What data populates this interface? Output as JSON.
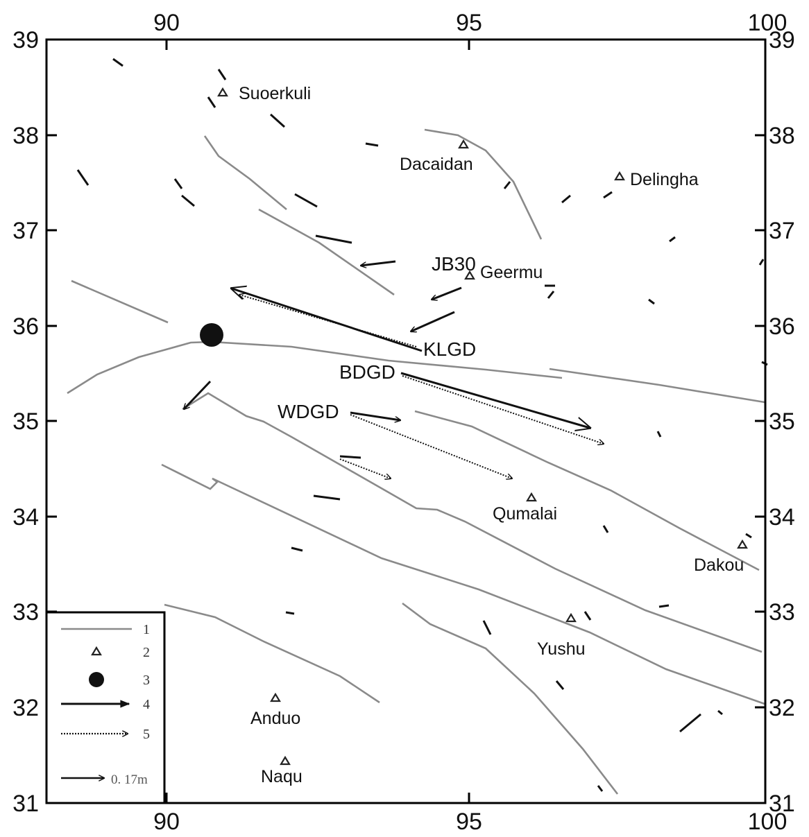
{
  "axes": {
    "x_ticks": [
      "90",
      "95",
      "100"
    ],
    "y_ticks": [
      "39",
      "38",
      "37",
      "36",
      "35",
      "34",
      "33",
      "32",
      "31"
    ]
  },
  "places": [
    {
      "id": "suoerkuli",
      "name": "Suoerkuli"
    },
    {
      "id": "dacaidan",
      "name": "Dacaidan"
    },
    {
      "id": "delingha",
      "name": "Delingha"
    },
    {
      "id": "geermu",
      "name": "Geermu"
    },
    {
      "id": "qumalai",
      "name": "Qumalai"
    },
    {
      "id": "dakou",
      "name": "Dakou"
    },
    {
      "id": "yushu",
      "name": "Yushu"
    },
    {
      "id": "anduo",
      "name": "Anduo"
    },
    {
      "id": "naqu",
      "name": "Naqu"
    }
  ],
  "stations": {
    "jb30": "JB30",
    "klgd": "KLGD",
    "bdgd": "BDGD",
    "wdgd": "WDGD"
  },
  "legend": {
    "items": [
      "1",
      "2",
      "3",
      "4",
      "5"
    ],
    "scale_label": "0. 17m"
  },
  "colors": {
    "fault": "#8a8a8a",
    "ink": "#111111",
    "frame": "#000000"
  },
  "icons": {
    "station": "triangle-icon",
    "epicenter": "filled-circle-icon",
    "observed": "solid-arrow-icon",
    "simulated": "dotted-arrow-icon"
  }
}
